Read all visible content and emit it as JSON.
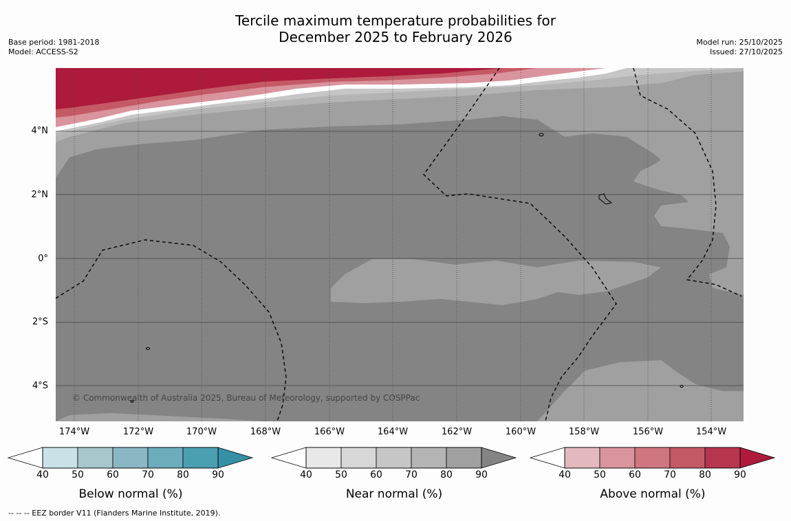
{
  "title_line1": "Tercile maximum temperature probabilities for",
  "title_line2": "December 2025 to February 2026",
  "meta_left": {
    "base_period": "Base period: 1981-2018",
    "model": "Model: ACCESS-S2"
  },
  "meta_right": {
    "model_run": "Model run: 25/10/2025",
    "issued": "Issued: 27/10/2025"
  },
  "lat_labels": [
    "4°N",
    "2°N",
    "0°",
    "2°S",
    "4°S"
  ],
  "lon_labels": [
    "174°W",
    "172°W",
    "170°W",
    "168°W",
    "166°W",
    "164°W",
    "162°W",
    "160°W",
    "158°W",
    "156°W",
    "154°W"
  ],
  "copyright": "© Commonwealth of Australia 2025, Bureau of Meteorology, supported by COSPPac",
  "footnote": "--  --  -- EEZ border V11 (Flanders Marine Institute, 2019).",
  "colorbars": [
    {
      "title": "Below normal (%)",
      "ticks": [
        "40",
        "50",
        "60",
        "70",
        "80",
        "90"
      ],
      "colors": [
        "#c8e2e8",
        "#a8c7cc",
        "#8ab7c4",
        "#6dacbb",
        "#4a9fb0",
        "#3590a6"
      ]
    },
    {
      "title": "Near normal (%)",
      "ticks": [
        "40",
        "50",
        "60",
        "70",
        "80",
        "90"
      ],
      "colors": [
        "#e8e8e8",
        "#d7d7d7",
        "#c6c6c6",
        "#b4b4b4",
        "#a0a0a0",
        "#848484"
      ]
    },
    {
      "title": "Above normal (%)",
      "ticks": [
        "40",
        "50",
        "60",
        "70",
        "80",
        "90"
      ],
      "colors": [
        "#e3b8bf",
        "#d9949d",
        "#cf7680",
        "#c45a66",
        "#b83550",
        "#ad1a3c"
      ]
    }
  ],
  "colors": {
    "near_90": "#848484",
    "near_80": "#a0a0a0",
    "near_70": "#b4b4b4",
    "near_60": "#c6c6c6",
    "above_50": "#d9949d",
    "above_70": "#c45a66",
    "above_90": "#ad1a3c"
  }
}
